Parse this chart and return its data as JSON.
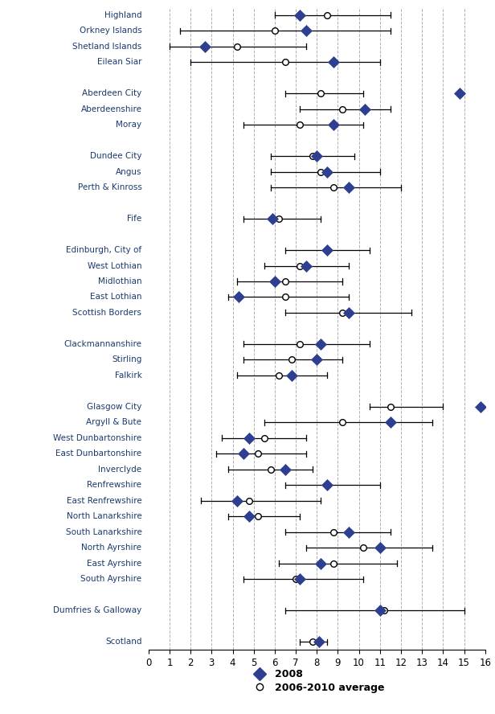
{
  "categories": [
    "Highland",
    "Orkney Islands",
    "Shetland Islands",
    "Eilean Siar",
    "",
    "Aberdeen City",
    "Aberdeenshire",
    "Moray",
    "",
    "Dundee City",
    "Angus",
    "Perth & Kinross",
    "",
    "Fife",
    "",
    "Edinburgh, City of",
    "West Lothian",
    "Midlothian",
    "East Lothian",
    "Scottish Borders",
    "",
    "Clackmannanshire",
    "Stirling",
    "Falkirk",
    "",
    "Glasgow City",
    "Argyll & Bute",
    "West Dunbartonshire",
    "East Dunbartonshire",
    "Inverclyde",
    "Renfrewshire",
    "East Renfrewshire",
    "North Lanarkshire",
    "South Lanarkshire",
    "North Ayrshire",
    "East Ayrshire",
    "South Ayrshire",
    "",
    "Dumfries & Galloway",
    "",
    "Scotland"
  ],
  "val2008": [
    7.2,
    7.5,
    2.7,
    8.8,
    null,
    14.8,
    10.3,
    8.8,
    null,
    8.0,
    8.5,
    9.5,
    null,
    5.9,
    null,
    8.5,
    7.5,
    6.0,
    4.3,
    9.5,
    null,
    8.2,
    8.0,
    6.8,
    null,
    15.8,
    11.5,
    4.8,
    4.5,
    6.5,
    8.5,
    4.2,
    4.8,
    9.5,
    11.0,
    8.2,
    7.2,
    null,
    11.0,
    null,
    8.1
  ],
  "avg": [
    8.5,
    6.0,
    4.2,
    6.5,
    null,
    8.2,
    9.2,
    7.2,
    null,
    7.8,
    8.2,
    8.8,
    null,
    6.2,
    null,
    8.5,
    7.2,
    6.5,
    6.5,
    9.2,
    null,
    7.2,
    6.8,
    6.2,
    null,
    11.5,
    9.2,
    5.5,
    5.2,
    5.8,
    8.5,
    4.8,
    5.2,
    8.8,
    10.2,
    8.8,
    7.0,
    null,
    11.2,
    null,
    7.8
  ],
  "ci_low": [
    6.0,
    1.5,
    1.0,
    2.0,
    null,
    6.5,
    7.2,
    4.5,
    null,
    5.8,
    5.8,
    5.8,
    null,
    4.5,
    null,
    6.5,
    5.5,
    4.2,
    3.8,
    6.5,
    null,
    4.5,
    4.5,
    4.2,
    null,
    10.5,
    5.5,
    3.5,
    3.2,
    3.8,
    6.5,
    2.5,
    3.8,
    6.5,
    7.5,
    6.2,
    4.5,
    null,
    6.5,
    null,
    7.2
  ],
  "ci_high": [
    11.5,
    11.5,
    7.5,
    11.0,
    null,
    10.2,
    11.5,
    10.2,
    null,
    9.8,
    11.0,
    12.0,
    null,
    8.2,
    null,
    10.5,
    9.5,
    9.2,
    9.5,
    12.5,
    null,
    10.5,
    9.2,
    8.5,
    null,
    14.0,
    13.5,
    7.5,
    7.5,
    7.8,
    11.0,
    8.2,
    7.2,
    11.5,
    13.5,
    11.8,
    10.2,
    null,
    15.0,
    null,
    8.5
  ],
  "diamond_color": "#2e3f8f",
  "label_color": "#1a3a6e",
  "line_color": "black",
  "xlim": [
    0,
    16
  ],
  "xticks": [
    0,
    1,
    2,
    3,
    4,
    5,
    6,
    7,
    8,
    9,
    10,
    11,
    12,
    13,
    14,
    15,
    16
  ],
  "grid_color": "#b0b0b0"
}
